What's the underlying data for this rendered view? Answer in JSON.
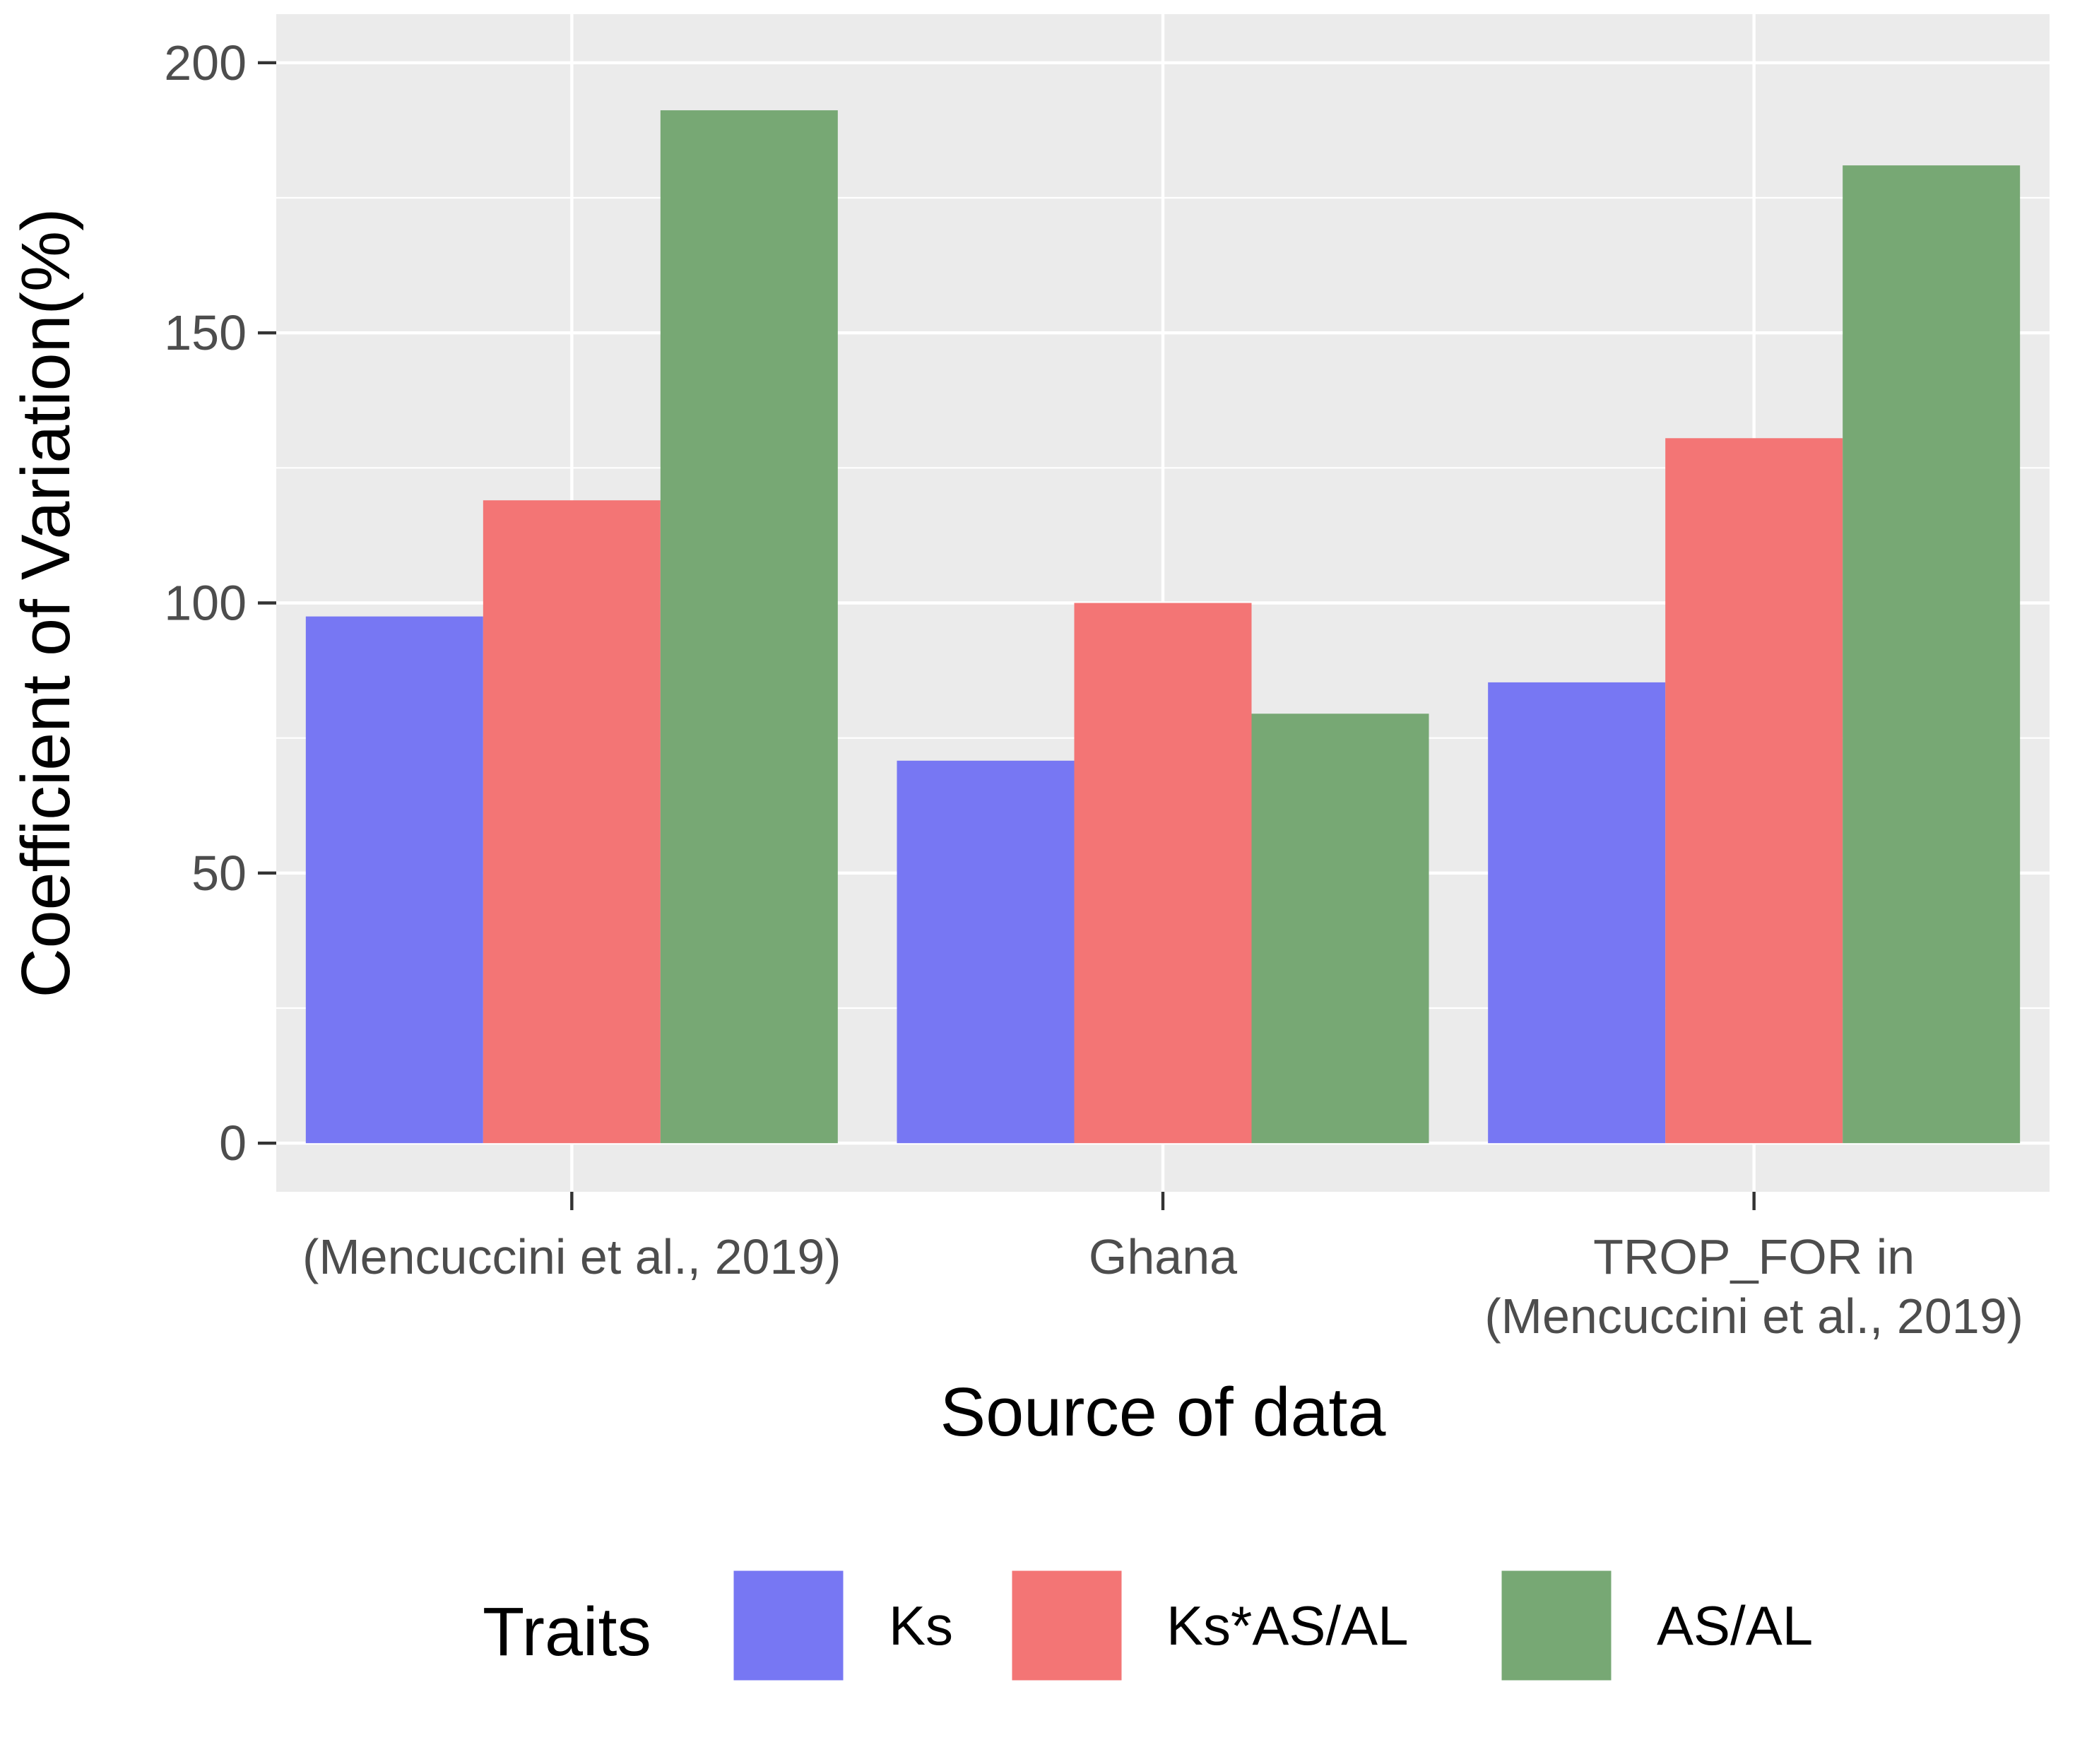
{
  "chart_data": {
    "type": "bar",
    "xlabel": "Source of data",
    "ylabel": "Coefficient of Variation(%)",
    "ylim": [
      -9,
      209
    ],
    "y_ticks": [
      0,
      50,
      100,
      150,
      200
    ],
    "grid": true,
    "categories": [
      [
        "(Mencuccini et al., 2019)"
      ],
      [
        "Ghana"
      ],
      [
        "TROP_FOR in",
        "(Mencuccini et al., 2019)"
      ]
    ],
    "series": [
      {
        "name": "Ks",
        "color": "#7777f3",
        "values": [
          97.5,
          70.8,
          85.3
        ]
      },
      {
        "name": "Ks*AS/AL",
        "color": "#f37575",
        "values": [
          119.0,
          100.0,
          130.5
        ]
      },
      {
        "name": "AS/AL",
        "color": "#77a874",
        "values": [
          191.2,
          79.5,
          181.0
        ]
      }
    ],
    "legend": {
      "title": "Traits",
      "position": "bottom"
    },
    "colors": {
      "panel": "#ebebeb",
      "grid": "#ffffff",
      "tick_text": "#4d4d4d",
      "title_text": "#000000"
    }
  }
}
